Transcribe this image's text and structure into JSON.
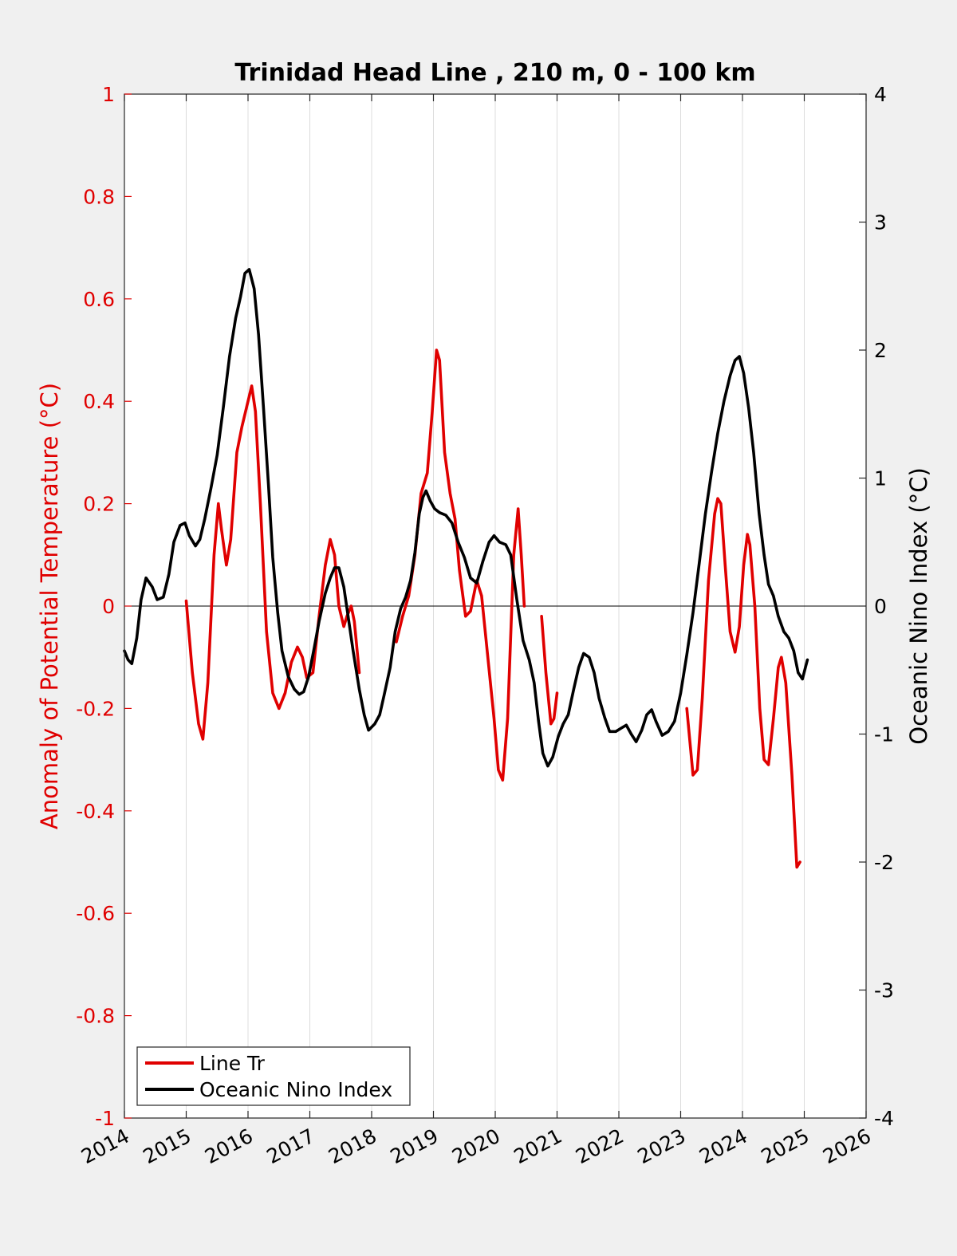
{
  "chart_data": {
    "type": "line",
    "title": "Trinidad Head Line , 210 m, 0 - 100 km",
    "xlabel": "",
    "ylabel_left": "Anomaly of Potential Temperature (°C)",
    "ylabel_right": "Oceanic Nino Index (°C)",
    "xlim": [
      2014,
      2026
    ],
    "ylim_left": [
      -1,
      1
    ],
    "ylim_right": [
      -4,
      4
    ],
    "x_ticks": [
      "2014",
      "2015",
      "2016",
      "2017",
      "2018",
      "2019",
      "2020",
      "2021",
      "2022",
      "2023",
      "2024",
      "2025",
      "2026"
    ],
    "y_ticks_left": [
      "1",
      "0.8",
      "0.6",
      "0.4",
      "0.2",
      "0",
      "-0.2",
      "-0.4",
      "-0.6",
      "-0.8",
      "-1"
    ],
    "y_ticks_right": [
      "4",
      "3",
      "2",
      "1",
      "0",
      "-1",
      "-2",
      "-3",
      "-4"
    ],
    "grid": "vertical",
    "legend_position": "bottom-left",
    "colors": {
      "line_tr": "#e00000",
      "oni": "#000000",
      "axis_left": "#e00000"
    },
    "series": [
      {
        "name": "Line Tr",
        "axis": "left",
        "segments": [
          [
            [
              2015.0,
              0.01
            ],
            [
              2015.1,
              -0.13
            ],
            [
              2015.2,
              -0.23
            ],
            [
              2015.27,
              -0.26
            ],
            [
              2015.35,
              -0.15
            ],
            [
              2015.45,
              0.1
            ],
            [
              2015.52,
              0.2
            ],
            [
              2015.57,
              0.15
            ],
            [
              2015.65,
              0.08
            ],
            [
              2015.72,
              0.13
            ],
            [
              2015.82,
              0.3
            ],
            [
              2015.9,
              0.35
            ],
            [
              2016.0,
              0.4
            ],
            [
              2016.06,
              0.43
            ],
            [
              2016.12,
              0.38
            ],
            [
              2016.2,
              0.2
            ],
            [
              2016.3,
              -0.05
            ],
            [
              2016.4,
              -0.17
            ],
            [
              2016.5,
              -0.2
            ],
            [
              2016.6,
              -0.17
            ],
            [
              2016.7,
              -0.11
            ],
            [
              2016.8,
              -0.08
            ],
            [
              2016.88,
              -0.1
            ],
            [
              2016.95,
              -0.14
            ],
            [
              2017.05,
              -0.13
            ],
            [
              2017.15,
              -0.02
            ],
            [
              2017.25,
              0.08
            ],
            [
              2017.33,
              0.13
            ],
            [
              2017.4,
              0.1
            ],
            [
              2017.47,
              0.0
            ],
            [
              2017.55,
              -0.04
            ],
            [
              2017.6,
              -0.02
            ],
            [
              2017.67,
              0.0
            ],
            [
              2017.72,
              -0.03
            ],
            [
              2017.8,
              -0.13
            ]
          ],
          [
            [
              2018.4,
              -0.07
            ],
            [
              2018.5,
              -0.02
            ],
            [
              2018.6,
              0.02
            ],
            [
              2018.7,
              0.1
            ],
            [
              2018.8,
              0.22
            ],
            [
              2018.9,
              0.26
            ],
            [
              2018.98,
              0.38
            ],
            [
              2019.05,
              0.5
            ],
            [
              2019.1,
              0.48
            ],
            [
              2019.18,
              0.3
            ],
            [
              2019.27,
              0.22
            ],
            [
              2019.35,
              0.17
            ],
            [
              2019.42,
              0.07
            ],
            [
              2019.52,
              -0.02
            ],
            [
              2019.6,
              -0.01
            ],
            [
              2019.7,
              0.05
            ],
            [
              2019.78,
              0.02
            ],
            [
              2019.88,
              -0.1
            ],
            [
              2019.98,
              -0.22
            ],
            [
              2020.05,
              -0.32
            ],
            [
              2020.12,
              -0.34
            ],
            [
              2020.2,
              -0.22
            ],
            [
              2020.3,
              0.1
            ],
            [
              2020.37,
              0.19
            ],
            [
              2020.42,
              0.1
            ],
            [
              2020.47,
              0.0
            ]
          ],
          [
            [
              2020.75,
              -0.02
            ],
            [
              2020.82,
              -0.13
            ],
            [
              2020.9,
              -0.23
            ],
            [
              2020.95,
              -0.22
            ],
            [
              2021.0,
              -0.17
            ]
          ],
          [
            [
              2023.1,
              -0.2
            ],
            [
              2023.2,
              -0.33
            ],
            [
              2023.27,
              -0.32
            ],
            [
              2023.35,
              -0.18
            ],
            [
              2023.45,
              0.05
            ],
            [
              2023.55,
              0.18
            ],
            [
              2023.6,
              0.21
            ],
            [
              2023.65,
              0.2
            ],
            [
              2023.72,
              0.08
            ],
            [
              2023.8,
              -0.05
            ],
            [
              2023.88,
              -0.09
            ],
            [
              2023.95,
              -0.04
            ],
            [
              2024.02,
              0.08
            ],
            [
              2024.08,
              0.14
            ],
            [
              2024.12,
              0.12
            ],
            [
              2024.2,
              0.0
            ],
            [
              2024.28,
              -0.2
            ],
            [
              2024.35,
              -0.3
            ],
            [
              2024.42,
              -0.31
            ],
            [
              2024.5,
              -0.22
            ],
            [
              2024.58,
              -0.12
            ],
            [
              2024.63,
              -0.1
            ],
            [
              2024.7,
              -0.15
            ],
            [
              2024.8,
              -0.33
            ],
            [
              2024.88,
              -0.51
            ],
            [
              2024.93,
              -0.5
            ]
          ]
        ]
      },
      {
        "name": "Oceanic Nino Index",
        "axis": "right",
        "points": [
          [
            2014.0,
            -0.35
          ],
          [
            2014.06,
            -0.42
          ],
          [
            2014.12,
            -0.45
          ],
          [
            2014.2,
            -0.25
          ],
          [
            2014.27,
            0.05
          ],
          [
            2014.35,
            0.22
          ],
          [
            2014.45,
            0.15
          ],
          [
            2014.53,
            0.05
          ],
          [
            2014.63,
            0.07
          ],
          [
            2014.72,
            0.25
          ],
          [
            2014.8,
            0.5
          ],
          [
            2014.9,
            0.63
          ],
          [
            2014.98,
            0.65
          ],
          [
            2015.05,
            0.55
          ],
          [
            2015.15,
            0.47
          ],
          [
            2015.22,
            0.52
          ],
          [
            2015.3,
            0.68
          ],
          [
            2015.4,
            0.92
          ],
          [
            2015.5,
            1.18
          ],
          [
            2015.6,
            1.55
          ],
          [
            2015.7,
            1.95
          ],
          [
            2015.8,
            2.25
          ],
          [
            2015.88,
            2.42
          ],
          [
            2015.95,
            2.6
          ],
          [
            2016.02,
            2.63
          ],
          [
            2016.1,
            2.48
          ],
          [
            2016.17,
            2.12
          ],
          [
            2016.25,
            1.55
          ],
          [
            2016.33,
            0.95
          ],
          [
            2016.4,
            0.38
          ],
          [
            2016.48,
            -0.05
          ],
          [
            2016.55,
            -0.35
          ],
          [
            2016.65,
            -0.55
          ],
          [
            2016.75,
            -0.65
          ],
          [
            2016.83,
            -0.69
          ],
          [
            2016.9,
            -0.67
          ],
          [
            2016.98,
            -0.55
          ],
          [
            2017.07,
            -0.33
          ],
          [
            2017.15,
            -0.12
          ],
          [
            2017.25,
            0.1
          ],
          [
            2017.33,
            0.22
          ],
          [
            2017.4,
            0.3
          ],
          [
            2017.47,
            0.3
          ],
          [
            2017.55,
            0.15
          ],
          [
            2017.62,
            -0.08
          ],
          [
            2017.7,
            -0.35
          ],
          [
            2017.8,
            -0.65
          ],
          [
            2017.88,
            -0.85
          ],
          [
            2017.95,
            -0.97
          ],
          [
            2018.05,
            -0.92
          ],
          [
            2018.13,
            -0.85
          ],
          [
            2018.2,
            -0.7
          ],
          [
            2018.3,
            -0.48
          ],
          [
            2018.38,
            -0.2
          ],
          [
            2018.47,
            -0.02
          ],
          [
            2018.55,
            0.07
          ],
          [
            2018.63,
            0.2
          ],
          [
            2018.7,
            0.42
          ],
          [
            2018.77,
            0.72
          ],
          [
            2018.83,
            0.85
          ],
          [
            2018.88,
            0.9
          ],
          [
            2018.95,
            0.82
          ],
          [
            2019.02,
            0.76
          ],
          [
            2019.1,
            0.73
          ],
          [
            2019.2,
            0.71
          ],
          [
            2019.3,
            0.65
          ],
          [
            2019.4,
            0.5
          ],
          [
            2019.5,
            0.38
          ],
          [
            2019.6,
            0.22
          ],
          [
            2019.7,
            0.18
          ],
          [
            2019.8,
            0.35
          ],
          [
            2019.9,
            0.5
          ],
          [
            2019.98,
            0.55
          ],
          [
            2020.07,
            0.5
          ],
          [
            2020.17,
            0.48
          ],
          [
            2020.25,
            0.4
          ],
          [
            2020.35,
            0.05
          ],
          [
            2020.45,
            -0.27
          ],
          [
            2020.55,
            -0.42
          ],
          [
            2020.63,
            -0.6
          ],
          [
            2020.7,
            -0.9
          ],
          [
            2020.77,
            -1.15
          ],
          [
            2020.85,
            -1.25
          ],
          [
            2020.93,
            -1.18
          ],
          [
            2021.02,
            -1.02
          ],
          [
            2021.1,
            -0.92
          ],
          [
            2021.18,
            -0.85
          ],
          [
            2021.27,
            -0.65
          ],
          [
            2021.35,
            -0.48
          ],
          [
            2021.43,
            -0.37
          ],
          [
            2021.52,
            -0.4
          ],
          [
            2021.6,
            -0.52
          ],
          [
            2021.68,
            -0.72
          ],
          [
            2021.77,
            -0.87
          ],
          [
            2021.85,
            -0.98
          ],
          [
            2021.95,
            -0.98
          ],
          [
            2022.05,
            -0.95
          ],
          [
            2022.12,
            -0.93
          ],
          [
            2022.2,
            -1.0
          ],
          [
            2022.28,
            -1.06
          ],
          [
            2022.37,
            -0.97
          ],
          [
            2022.45,
            -0.85
          ],
          [
            2022.53,
            -0.81
          ],
          [
            2022.6,
            -0.9
          ],
          [
            2022.7,
            -1.01
          ],
          [
            2022.8,
            -0.98
          ],
          [
            2022.9,
            -0.9
          ],
          [
            2023.0,
            -0.68
          ],
          [
            2023.1,
            -0.38
          ],
          [
            2023.2,
            -0.05
          ],
          [
            2023.3,
            0.33
          ],
          [
            2023.4,
            0.72
          ],
          [
            2023.5,
            1.05
          ],
          [
            2023.6,
            1.35
          ],
          [
            2023.7,
            1.6
          ],
          [
            2023.8,
            1.8
          ],
          [
            2023.88,
            1.92
          ],
          [
            2023.95,
            1.95
          ],
          [
            2024.02,
            1.82
          ],
          [
            2024.1,
            1.55
          ],
          [
            2024.18,
            1.2
          ],
          [
            2024.27,
            0.72
          ],
          [
            2024.35,
            0.4
          ],
          [
            2024.42,
            0.17
          ],
          [
            2024.5,
            0.08
          ],
          [
            2024.58,
            -0.08
          ],
          [
            2024.67,
            -0.2
          ],
          [
            2024.75,
            -0.25
          ],
          [
            2024.83,
            -0.35
          ],
          [
            2024.9,
            -0.52
          ],
          [
            2024.97,
            -0.57
          ],
          [
            2025.05,
            -0.42
          ]
        ]
      }
    ],
    "legend": [
      {
        "label": "Line Tr",
        "color": "#e00000"
      },
      {
        "label": "Oceanic Nino Index",
        "color": "#000000"
      }
    ]
  }
}
